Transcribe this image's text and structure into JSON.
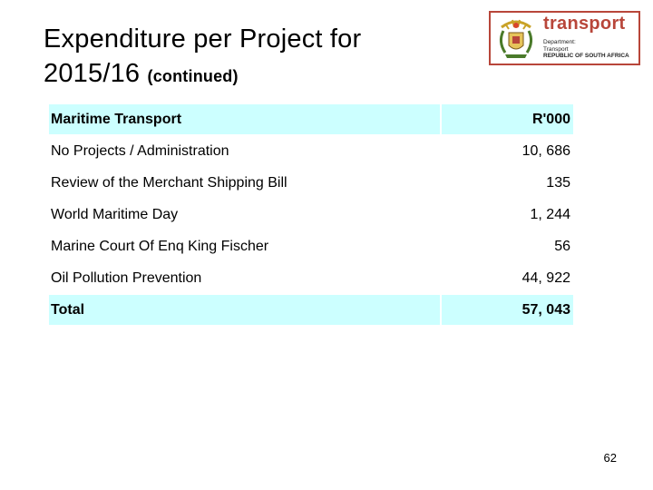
{
  "slide": {
    "title_main": "Expenditure per Project for 2015/16",
    "title_sub": "(continued)",
    "page_number": "62"
  },
  "logo": {
    "word": "transport",
    "line1": "Department:",
    "line2": "Transport",
    "line3": "REPUBLIC OF SOUTH AFRICA",
    "brand_color": "#b8463a"
  },
  "table": {
    "header": {
      "label": "Maritime Transport",
      "unit": "R'000"
    },
    "rows": [
      {
        "label": "No Projects / Administration",
        "value": "10, 686"
      },
      {
        "label": "Review of the Merchant Shipping Bill",
        "value": "135"
      },
      {
        "label": "World Maritime Day",
        "value": "1, 244"
      },
      {
        "label": "Marine Court Of Enq King Fischer",
        "value": "56"
      },
      {
        "label": "Oil Pollution Prevention",
        "value": "44, 922"
      }
    ],
    "total": {
      "label": "Total",
      "value": "57, 043"
    },
    "highlight_color": "#ccffff"
  }
}
